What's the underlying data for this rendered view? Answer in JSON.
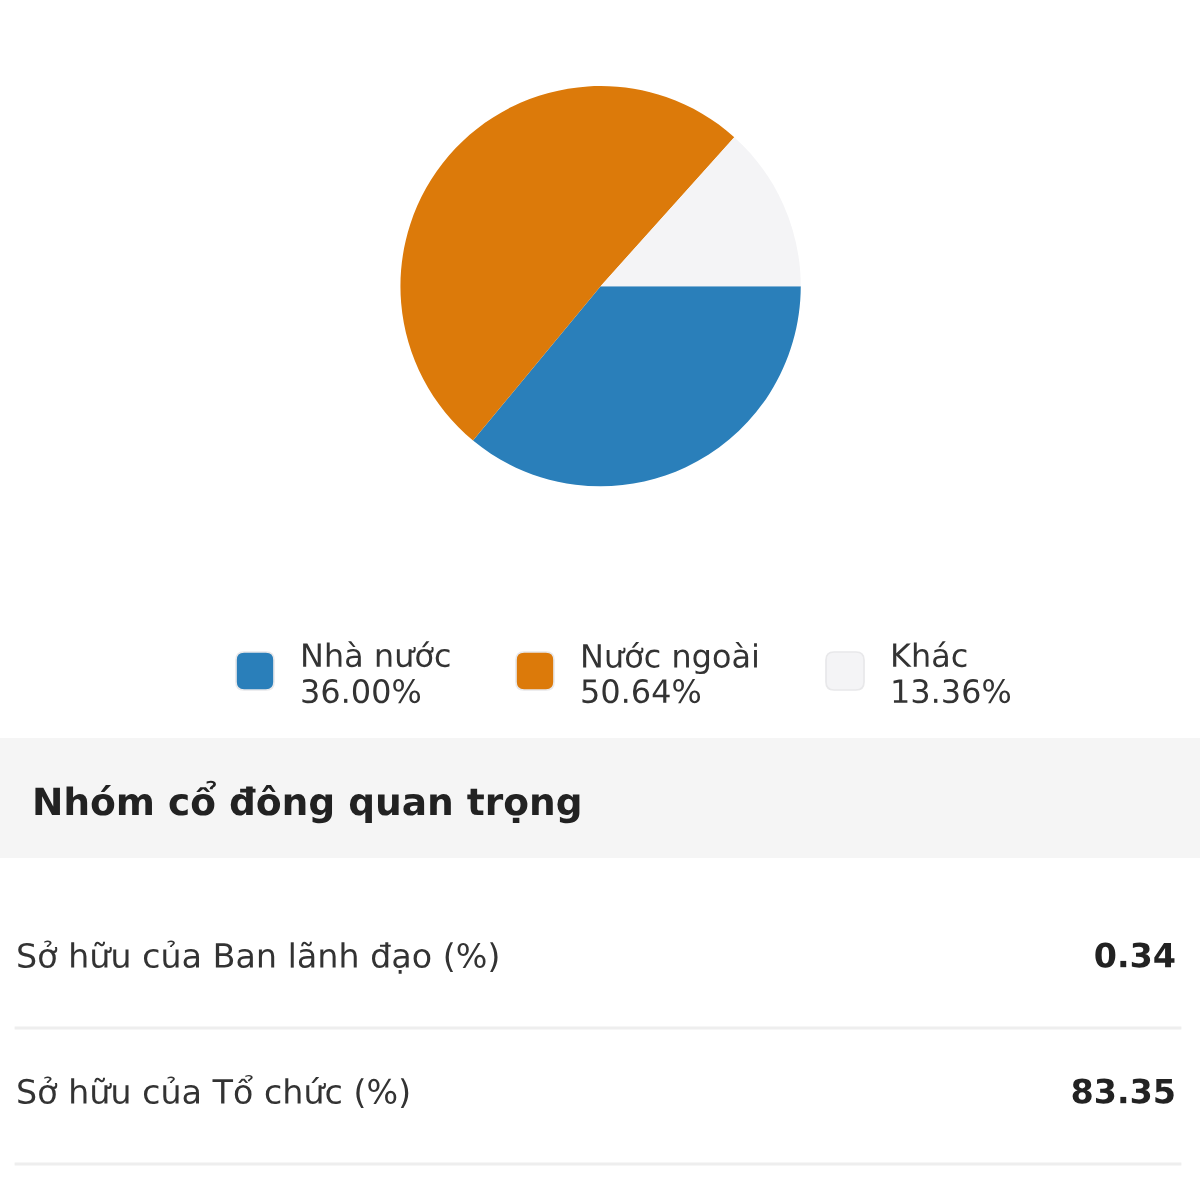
{
  "chart_data": [
    {
      "type": "pie",
      "categories": [
        "Nhà nước",
        "Nước ngoài",
        "Khác"
      ],
      "values": [
        36.0,
        50.64,
        13.36
      ],
      "colors": [
        "#2a7fba",
        "#dc7a0a",
        "#f4f4f6"
      ],
      "value_labels": [
        "36.00%",
        "50.64%",
        "13.36%"
      ],
      "legend": "bottom"
    },
    {
      "type": "other",
      "title": "Nhóm cổ đông quan trọng",
      "categories": [
        "Sở hữu của Ban lãnh đạo (%)",
        "Sở hữu của Tổ chức (%)"
      ],
      "value_labels": [
        "0.34",
        "83.35"
      ]
    }
  ]
}
